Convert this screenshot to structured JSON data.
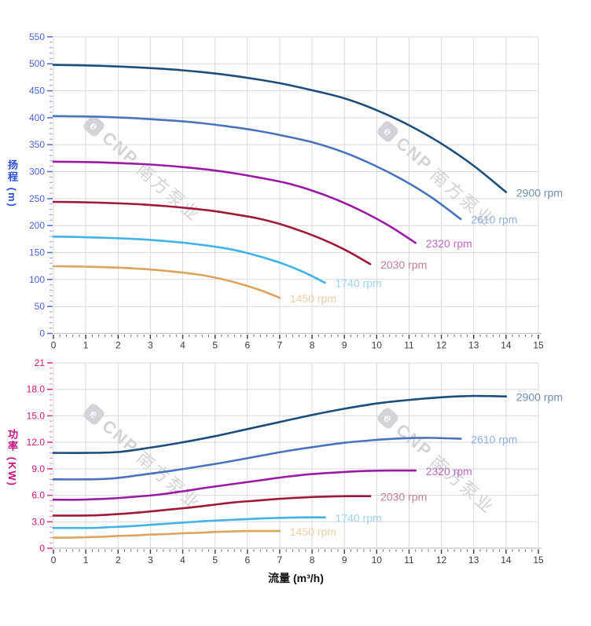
{
  "page": {
    "background": "#ffffff"
  },
  "x_axis": {
    "label": "流量 (m³/h)",
    "ticks": [
      "0",
      "1",
      "2",
      "3",
      "4",
      "5",
      "6",
      "7",
      "8",
      "9",
      "10",
      "11",
      "12",
      "13",
      "14",
      "15"
    ],
    "tick_label_color": "#3b3b3b",
    "title_color": "#111111"
  },
  "watermark": {
    "logo_letter": "e",
    "brand": "CNP",
    "company": "南方泵业"
  },
  "chart_data": [
    {
      "type": "line",
      "title": "",
      "ylabel": "扬程 (m)",
      "xlabel": "流量 (m³/h)",
      "xlim": [
        0,
        15
      ],
      "ylim": [
        0,
        550
      ],
      "grid": true,
      "legend_position": "right-of-curve-ends",
      "ytick_labels": [
        "0",
        "50",
        "100",
        "150",
        "200",
        "250",
        "300",
        "350",
        "400",
        "450",
        "500",
        "550"
      ],
      "xtick_labels": [
        "0",
        "1",
        "2",
        "3",
        "4",
        "5",
        "6",
        "7",
        "8",
        "9",
        "10",
        "11",
        "12",
        "13",
        "14",
        "15"
      ],
      "axis_title_color": "#2a4fd4",
      "tick_label_color": "#4a63d8",
      "major_tick_color": "#5a6fd8",
      "minor_tick_color": "#97a5ec",
      "series": [
        {
          "name": "2900 rpm",
          "color": "#1d4e79",
          "label_color": "#6e8cad",
          "points": [
            [
              0,
              498
            ],
            [
              1,
              497
            ],
            [
              2,
              495
            ],
            [
              3,
              492
            ],
            [
              4,
              488
            ],
            [
              5,
              482
            ],
            [
              6,
              474
            ],
            [
              7,
              464
            ],
            [
              8,
              451
            ],
            [
              9,
              436
            ],
            [
              10,
              414
            ],
            [
              11,
              386
            ],
            [
              12,
              352
            ],
            [
              13,
              311
            ],
            [
              14,
              262
            ]
          ]
        },
        {
          "name": "2610 rpm",
          "color": "#4a73bd",
          "label_color": "#8fb0dc",
          "points": [
            [
              0,
              403
            ],
            [
              0.9,
              402.5
            ],
            [
              1.8,
              401
            ],
            [
              2.7,
              398.5
            ],
            [
              3.6,
              395
            ],
            [
              4.5,
              390.5
            ],
            [
              5.4,
              384
            ],
            [
              6.3,
              376
            ],
            [
              7.2,
              365.5
            ],
            [
              8.1,
              353
            ],
            [
              9,
              335.5
            ],
            [
              9.9,
              312.5
            ],
            [
              10.8,
              285
            ],
            [
              11.7,
              252
            ],
            [
              12.6,
              212
            ]
          ]
        },
        {
          "name": "2320 rpm",
          "color": "#9a1aa3",
          "label_color": "#bf6cc5",
          "points": [
            [
              0,
              318.5
            ],
            [
              0.8,
              318
            ],
            [
              1.6,
              317
            ],
            [
              2.4,
              315
            ],
            [
              3.2,
              312.5
            ],
            [
              4,
              308.5
            ],
            [
              4.8,
              303.5
            ],
            [
              5.6,
              297
            ],
            [
              6.4,
              288.5
            ],
            [
              7.2,
              279
            ],
            [
              8,
              265
            ],
            [
              8.8,
              247
            ],
            [
              9.6,
              225
            ],
            [
              10.4,
              199
            ],
            [
              11.2,
              168
            ]
          ]
        },
        {
          "name": "2030 rpm",
          "color": "#9e1a38",
          "label_color": "#c17f92",
          "points": [
            [
              0,
              244
            ],
            [
              0.7,
              243.5
            ],
            [
              1.4,
              242.5
            ],
            [
              2.1,
              241
            ],
            [
              2.8,
              239
            ],
            [
              3.5,
              236
            ],
            [
              4.2,
              232
            ],
            [
              4.9,
              227.5
            ],
            [
              5.6,
              221
            ],
            [
              6.3,
              213.5
            ],
            [
              7,
              203
            ],
            [
              7.7,
              189
            ],
            [
              8.4,
              172.5
            ],
            [
              9.1,
              152.5
            ],
            [
              9.8,
              128.5
            ]
          ]
        },
        {
          "name": "1740 rpm",
          "color": "#41b3e6",
          "label_color": "#9ed3ef",
          "points": [
            [
              0,
              179.5
            ],
            [
              0.6,
              179
            ],
            [
              1.2,
              178
            ],
            [
              1.8,
              177
            ],
            [
              2.4,
              175.5
            ],
            [
              3,
              173.5
            ],
            [
              3.6,
              170.5
            ],
            [
              4.2,
              167
            ],
            [
              4.8,
              162.5
            ],
            [
              5.4,
              157
            ],
            [
              6,
              149
            ],
            [
              6.6,
              139
            ],
            [
              7.2,
              127
            ],
            [
              7.8,
              112
            ],
            [
              8.4,
              94
            ]
          ]
        },
        {
          "name": "1450 rpm",
          "color": "#dca45f",
          "label_color": "#e7cfa4",
          "points": [
            [
              0,
              124.5
            ],
            [
              0.5,
              124.3
            ],
            [
              1,
              123.8
            ],
            [
              1.5,
              123
            ],
            [
              2,
              122
            ],
            [
              2.5,
              120.5
            ],
            [
              3,
              118.5
            ],
            [
              3.5,
              116
            ],
            [
              4,
              112.8
            ],
            [
              4.5,
              109
            ],
            [
              5,
              103.5
            ],
            [
              5.5,
              96.5
            ],
            [
              6,
              88
            ],
            [
              6.5,
              78
            ],
            [
              7,
              66
            ]
          ]
        }
      ]
    },
    {
      "type": "line",
      "title": "",
      "ylabel": "功率 (KW)",
      "xlabel": "流量 (m³/h)",
      "xlim": [
        0,
        15
      ],
      "ylim": [
        0,
        21
      ],
      "grid": true,
      "legend_position": "right-of-curve-ends",
      "ytick_labels": [
        "0",
        "3.0",
        "6.0",
        "9.0",
        "12.0",
        "15.0",
        "18.0",
        "21"
      ],
      "xtick_labels": [
        "0",
        "1",
        "2",
        "3",
        "4",
        "5",
        "6",
        "7",
        "8",
        "9",
        "10",
        "11",
        "12",
        "13",
        "14",
        "15"
      ],
      "axis_title_color": "#c50f7a",
      "tick_label_color": "#d01579",
      "major_tick_color": "#d63a92",
      "minor_tick_color": "#ef8ec1",
      "series": [
        {
          "name": "2900 rpm",
          "color": "#1d4e79",
          "label_color": "#6e8cad",
          "points": [
            [
              0,
              10.8
            ],
            [
              1,
              10.8
            ],
            [
              2,
              10.9
            ],
            [
              3,
              11.4
            ],
            [
              4,
              12.0
            ],
            [
              5,
              12.7
            ],
            [
              6,
              13.5
            ],
            [
              7,
              14.3
            ],
            [
              8,
              15.1
            ],
            [
              9,
              15.8
            ],
            [
              10,
              16.4
            ],
            [
              11,
              16.8
            ],
            [
              12,
              17.1
            ],
            [
              13,
              17.25
            ],
            [
              14,
              17.2
            ]
          ]
        },
        {
          "name": "2610 rpm",
          "color": "#4a73bd",
          "label_color": "#8fb0dc",
          "points": [
            [
              0,
              7.8
            ],
            [
              0.9,
              7.8
            ],
            [
              1.8,
              7.9
            ],
            [
              2.7,
              8.3
            ],
            [
              3.6,
              8.75
            ],
            [
              4.5,
              9.25
            ],
            [
              5.4,
              9.8
            ],
            [
              6.3,
              10.4
            ],
            [
              7.2,
              11.0
            ],
            [
              8.1,
              11.5
            ],
            [
              9,
              11.95
            ],
            [
              9.9,
              12.25
            ],
            [
              10.8,
              12.45
            ],
            [
              11.7,
              12.5
            ],
            [
              12.6,
              12.4
            ]
          ]
        },
        {
          "name": "2320 rpm",
          "color": "#9a1aa3",
          "label_color": "#bf6cc5",
          "points": [
            [
              0,
              5.5
            ],
            [
              0.8,
              5.5
            ],
            [
              1.6,
              5.6
            ],
            [
              2.4,
              5.8
            ],
            [
              3.2,
              6.05
            ],
            [
              4,
              6.45
            ],
            [
              4.8,
              6.9
            ],
            [
              5.6,
              7.3
            ],
            [
              6.4,
              7.7
            ],
            [
              7.2,
              8.1
            ],
            [
              8,
              8.4
            ],
            [
              8.8,
              8.6
            ],
            [
              9.6,
              8.75
            ],
            [
              10.4,
              8.8
            ],
            [
              11.2,
              8.8
            ]
          ]
        },
        {
          "name": "2030 rpm",
          "color": "#9e1a38",
          "label_color": "#c17f92",
          "points": [
            [
              0,
              3.7
            ],
            [
              0.7,
              3.7
            ],
            [
              1.4,
              3.75
            ],
            [
              2.1,
              3.9
            ],
            [
              2.8,
              4.1
            ],
            [
              3.5,
              4.35
            ],
            [
              4.2,
              4.6
            ],
            [
              4.9,
              4.9
            ],
            [
              5.6,
              5.2
            ],
            [
              6.3,
              5.4
            ],
            [
              7,
              5.6
            ],
            [
              7.7,
              5.75
            ],
            [
              8.4,
              5.85
            ],
            [
              9.1,
              5.9
            ],
            [
              9.8,
              5.9
            ]
          ]
        },
        {
          "name": "1740 rpm",
          "color": "#41b3e6",
          "label_color": "#9ed3ef",
          "points": [
            [
              0,
              2.3
            ],
            [
              0.6,
              2.3
            ],
            [
              1.2,
              2.3
            ],
            [
              1.8,
              2.4
            ],
            [
              2.4,
              2.5
            ],
            [
              3,
              2.65
            ],
            [
              3.6,
              2.8
            ],
            [
              4.2,
              2.95
            ],
            [
              4.8,
              3.1
            ],
            [
              5.4,
              3.2
            ],
            [
              6,
              3.3
            ],
            [
              6.6,
              3.4
            ],
            [
              7.2,
              3.45
            ],
            [
              7.8,
              3.5
            ],
            [
              8.4,
              3.5
            ]
          ]
        },
        {
          "name": "1450 rpm",
          "color": "#dca45f",
          "label_color": "#e7cfa4",
          "points": [
            [
              0,
              1.2
            ],
            [
              0.5,
              1.2
            ],
            [
              1,
              1.25
            ],
            [
              1.5,
              1.3
            ],
            [
              2,
              1.4
            ],
            [
              2.5,
              1.45
            ],
            [
              3,
              1.55
            ],
            [
              3.5,
              1.6
            ],
            [
              4,
              1.7
            ],
            [
              4.5,
              1.75
            ],
            [
              5,
              1.85
            ],
            [
              5.5,
              1.9
            ],
            [
              6,
              1.95
            ],
            [
              6.5,
              1.95
            ],
            [
              7,
              1.95
            ]
          ]
        }
      ]
    }
  ]
}
